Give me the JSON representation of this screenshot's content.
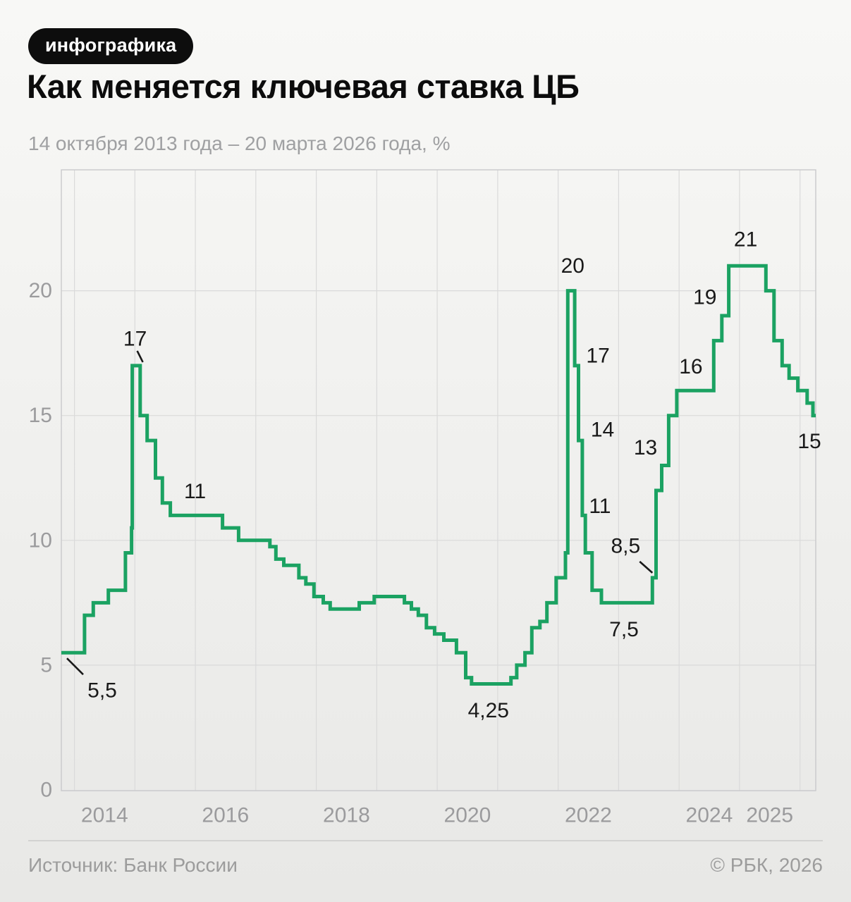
{
  "header": {
    "badge": "инфографика",
    "title": "Как меняется ключевая ставка ЦБ",
    "subtitle": "14 октября 2013 года – 20 марта 2026 года, %"
  },
  "chart_data": {
    "type": "step-line",
    "line_color": "#1BA262",
    "grid_color": "#dadada",
    "border_color": "#c9c9cb",
    "x_axis": {
      "start_date": "2013-10-14",
      "end_date": "2026-03-20",
      "gridline_years": [
        2014,
        2015,
        2016,
        2017,
        2018,
        2019,
        2020,
        2021,
        2022,
        2023,
        2024,
        2025,
        2026
      ],
      "tick_years": [
        2014,
        2016,
        2018,
        2020,
        2022,
        2024,
        2025
      ]
    },
    "y_axis": {
      "ticks": [
        0,
        5,
        10,
        15,
        20
      ],
      "max": 24.8
    },
    "steps": [
      {
        "date": "2013-10-14",
        "value": 5.5
      },
      {
        "date": "2014-03-03",
        "value": 7
      },
      {
        "date": "2014-04-25",
        "value": 7.5
      },
      {
        "date": "2014-07-25",
        "value": 8
      },
      {
        "date": "2014-11-05",
        "value": 9.5
      },
      {
        "date": "2014-12-12",
        "value": 10.5
      },
      {
        "date": "2014-12-16",
        "value": 17
      },
      {
        "date": "2015-02-02",
        "value": 15
      },
      {
        "date": "2015-03-16",
        "value": 14
      },
      {
        "date": "2015-05-05",
        "value": 12.5
      },
      {
        "date": "2015-06-16",
        "value": 11.5
      },
      {
        "date": "2015-08-03",
        "value": 11
      },
      {
        "date": "2016-06-14",
        "value": 10.5
      },
      {
        "date": "2016-09-19",
        "value": 10
      },
      {
        "date": "2017-03-27",
        "value": 9.75
      },
      {
        "date": "2017-05-02",
        "value": 9.25
      },
      {
        "date": "2017-06-19",
        "value": 9
      },
      {
        "date": "2017-09-18",
        "value": 8.5
      },
      {
        "date": "2017-10-30",
        "value": 8.25
      },
      {
        "date": "2017-12-18",
        "value": 7.75
      },
      {
        "date": "2018-02-12",
        "value": 7.5
      },
      {
        "date": "2018-03-26",
        "value": 7.25
      },
      {
        "date": "2018-09-17",
        "value": 7.5
      },
      {
        "date": "2018-12-17",
        "value": 7.75
      },
      {
        "date": "2019-06-17",
        "value": 7.5
      },
      {
        "date": "2019-07-29",
        "value": 7.25
      },
      {
        "date": "2019-09-09",
        "value": 7
      },
      {
        "date": "2019-10-28",
        "value": 6.5
      },
      {
        "date": "2019-12-16",
        "value": 6.25
      },
      {
        "date": "2020-02-10",
        "value": 6
      },
      {
        "date": "2020-04-27",
        "value": 5.5
      },
      {
        "date": "2020-06-22",
        "value": 4.5
      },
      {
        "date": "2020-07-27",
        "value": 4.25
      },
      {
        "date": "2021-03-22",
        "value": 4.5
      },
      {
        "date": "2021-04-26",
        "value": 5
      },
      {
        "date": "2021-06-15",
        "value": 5.5
      },
      {
        "date": "2021-07-26",
        "value": 6.5
      },
      {
        "date": "2021-09-13",
        "value": 6.75
      },
      {
        "date": "2021-10-25",
        "value": 7.5
      },
      {
        "date": "2021-12-20",
        "value": 8.5
      },
      {
        "date": "2022-02-14",
        "value": 9.5
      },
      {
        "date": "2022-02-28",
        "value": 20
      },
      {
        "date": "2022-04-11",
        "value": 17
      },
      {
        "date": "2022-05-04",
        "value": 14
      },
      {
        "date": "2022-05-27",
        "value": 11
      },
      {
        "date": "2022-06-14",
        "value": 9.5
      },
      {
        "date": "2022-07-25",
        "value": 8
      },
      {
        "date": "2022-09-19",
        "value": 7.5
      },
      {
        "date": "2023-07-24",
        "value": 8.5
      },
      {
        "date": "2023-08-15",
        "value": 12
      },
      {
        "date": "2023-09-18",
        "value": 13
      },
      {
        "date": "2023-10-30",
        "value": 15
      },
      {
        "date": "2023-12-18",
        "value": 16
      },
      {
        "date": "2024-07-29",
        "value": 18
      },
      {
        "date": "2024-09-16",
        "value": 19
      },
      {
        "date": "2024-10-28",
        "value": 21
      },
      {
        "date": "2025-06-09",
        "value": 20
      },
      {
        "date": "2025-07-28",
        "value": 18
      },
      {
        "date": "2025-09-15",
        "value": 17
      },
      {
        "date": "2025-10-27",
        "value": 16.5
      },
      {
        "date": "2025-12-19",
        "value": 16
      },
      {
        "date": "2026-02-13",
        "value": 15.5
      },
      {
        "date": "2026-03-20",
        "value": 15
      }
    ],
    "annotations": [
      {
        "text": "17",
        "date": "2014-12-16",
        "value": 17,
        "leader": true
      },
      {
        "text": "11",
        "date": "2015-08-03",
        "value": 11
      },
      {
        "text": "5,5",
        "date": "2013-10-14",
        "value": 5.5,
        "leader": true
      },
      {
        "text": "4,25",
        "date": "2020-07-27",
        "value": 4.25
      },
      {
        "text": "20",
        "date": "2022-02-28",
        "value": 20
      },
      {
        "text": "17",
        "date": "2022-04-11",
        "value": 17
      },
      {
        "text": "14",
        "date": "2022-05-04",
        "value": 14
      },
      {
        "text": "11",
        "date": "2022-05-27",
        "value": 11
      },
      {
        "text": "8,5",
        "date": "2023-07-24",
        "value": 8.5,
        "leader": true
      },
      {
        "text": "7,5",
        "date": "2022-09-19",
        "value": 7.5
      },
      {
        "text": "13",
        "date": "2023-09-18",
        "value": 13
      },
      {
        "text": "16",
        "date": "2023-12-18",
        "value": 16
      },
      {
        "text": "19",
        "date": "2024-09-16",
        "value": 19
      },
      {
        "text": "21",
        "date": "2024-10-28",
        "value": 21
      },
      {
        "text": "15",
        "date": "2026-03-20",
        "value": 15
      }
    ]
  },
  "footer": {
    "source": "Источник: Банк России",
    "copyright": "© РБК, 2026"
  }
}
